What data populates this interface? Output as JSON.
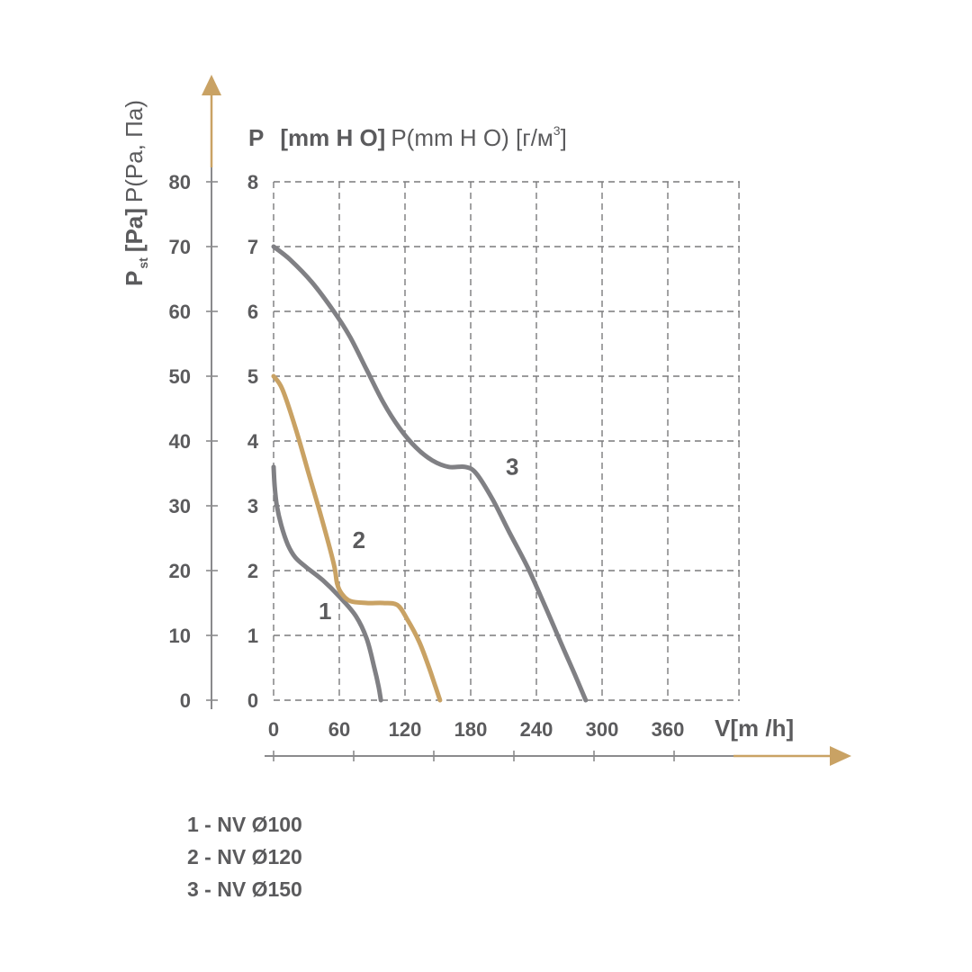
{
  "chart_data": {
    "type": "line",
    "y_title_main": "P",
    "y_title_sub": "st",
    "y_title_unit_bold": "[Pa]",
    "y_title_unit_extra": "P(Pa, Па)",
    "y2_title_main": "P",
    "y2_title_unit_bold": "[mm H O]",
    "y2_title_unit_extra": "P(mm H O) [г/м",
    "y2_title_sup": "3",
    "y2_title_close": "]",
    "x_title": "V[m /h]",
    "x_ticks": [
      "0",
      "60",
      "120",
      "180",
      "240",
      "300",
      "360"
    ],
    "y_ticks": [
      "0",
      "10",
      "20",
      "30",
      "40",
      "50",
      "60",
      "70",
      "80"
    ],
    "y2_ticks": [
      "0",
      "1",
      "2",
      "3",
      "4",
      "5",
      "6",
      "7",
      "8"
    ],
    "xlim": [
      0,
      430
    ],
    "ylim": [
      0,
      80
    ],
    "grid": true,
    "colors": {
      "text": "#5b5b5d",
      "grid": "#7a7a7c",
      "arrow": "#c9a264",
      "gray_curve": "#808084",
      "gold_curve": "#c9a264"
    },
    "series": [
      {
        "name": "1",
        "color": "#808084",
        "x": [
          0,
          1,
          3,
          7,
          13,
          20,
          30,
          45,
          60,
          75,
          85,
          92,
          96,
          98
        ],
        "y": [
          36,
          33,
          30,
          27,
          24,
          22,
          20.5,
          18.5,
          16,
          13,
          9.5,
          5,
          2,
          0
        ]
      },
      {
        "name": "2",
        "color": "#c9a264",
        "x": [
          0,
          8,
          20,
          32,
          44,
          55,
          58,
          62,
          70,
          85,
          100,
          113,
          122,
          133,
          142,
          148,
          152
        ],
        "y": [
          50,
          48,
          42,
          35,
          28,
          21,
          18,
          16.5,
          15.3,
          15,
          15,
          14.7,
          12.5,
          9,
          5,
          2,
          0
        ]
      },
      {
        "name": "3",
        "color": "#808084",
        "x": [
          0,
          15,
          35,
          55,
          70,
          85,
          100,
          115,
          130,
          145,
          160,
          175,
          185,
          200,
          215,
          232,
          248,
          262,
          275,
          285
        ],
        "y": [
          70,
          68,
          64.5,
          60,
          56,
          51,
          46,
          42,
          39,
          37,
          36,
          36,
          35,
          31,
          26,
          20.5,
          14.5,
          9,
          4,
          0
        ]
      }
    ]
  },
  "legend": [
    {
      "label": "1 - NV Ø100"
    },
    {
      "label": "2 - NV Ø120"
    },
    {
      "label": "3 - NV Ø150"
    }
  ]
}
